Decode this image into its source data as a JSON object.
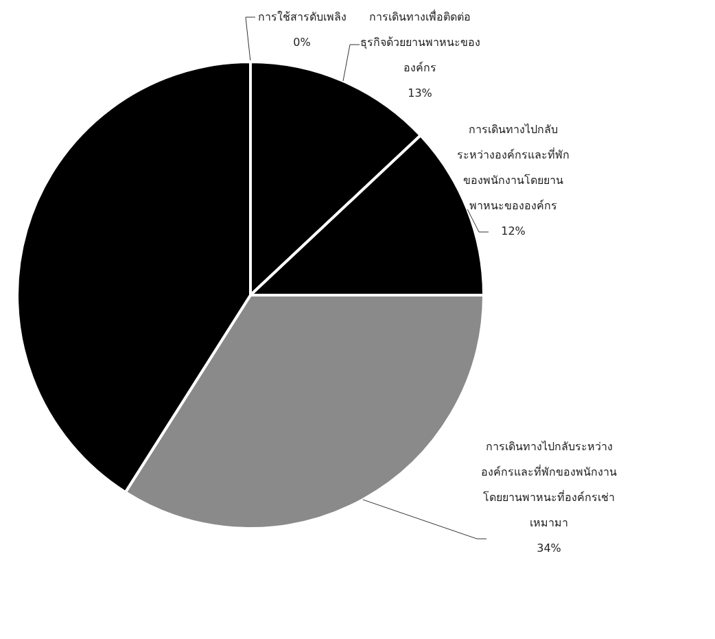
{
  "chart_data": {
    "type": "pie",
    "categories": [
      "การใช้สารดับเพลิง",
      "การเดินทางเพื่อติดต่อธุรกิจด้วยยานพาหนะขององค์กร",
      "การเดินทางไปกลับระหว่างองค์กรและที่พักของพนักงานโดยยานพาหนะขององค์กร",
      "การเดินทางไปกลับระหว่างองค์กรและที่พักของพนักงานโดยยานพาหนะที่องค์กรเช่าเหมามา",
      null
    ],
    "values": [
      0,
      13,
      12,
      34,
      41
    ],
    "value_labels": [
      "0%",
      "13%",
      "12%",
      "34%",
      null
    ],
    "colors": [
      "#000000",
      "#000000",
      "#000000",
      "#8a8a8a",
      "#000000"
    ]
  }
}
